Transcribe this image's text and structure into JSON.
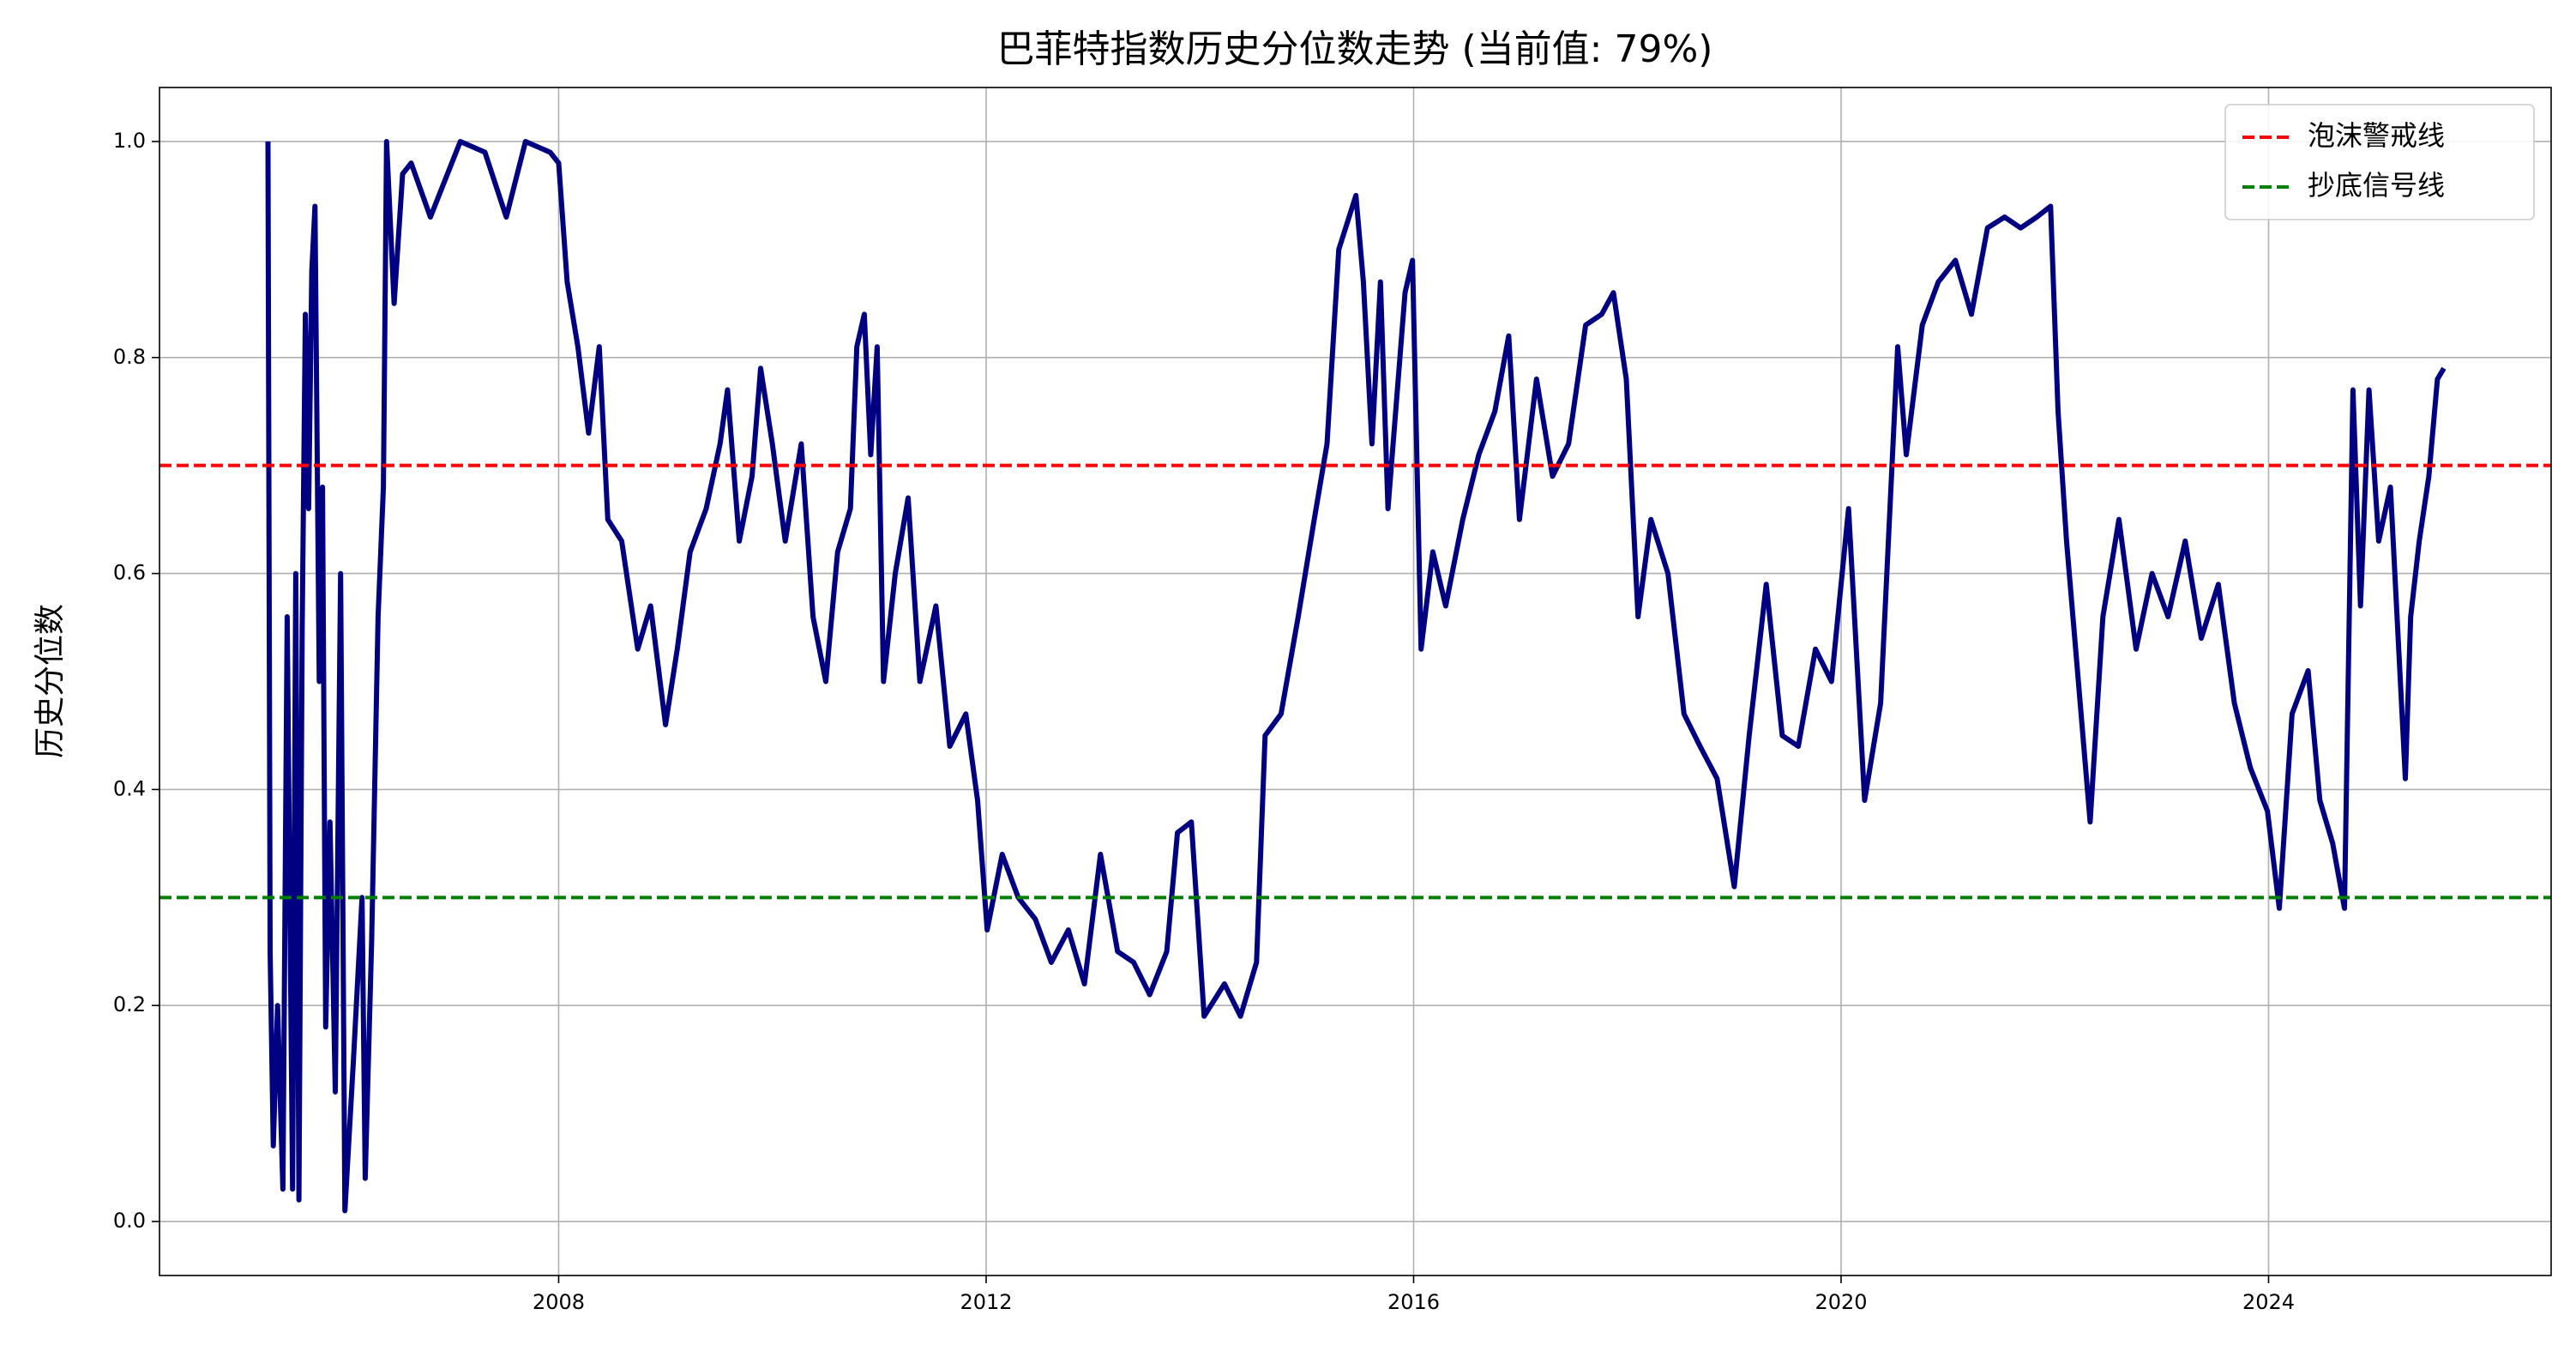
{
  "chart_data": {
    "type": "line",
    "title": "巴菲特指数历史分位数走势 (当前值: 79%)",
    "ylabel": "历史分位数",
    "x": [
      2005.28,
      2005.3,
      2005.33,
      2005.37,
      2005.42,
      2005.46,
      2005.51,
      2005.54,
      2005.57,
      2005.6,
      2005.63,
      2005.66,
      2005.69,
      2005.72,
      2005.76,
      2005.79,
      2005.82,
      2005.86,
      2005.91,
      2005.96,
      2006.0,
      2006.08,
      2006.16,
      2006.19,
      2006.25,
      2006.31,
      2006.36,
      2006.39,
      2006.46,
      2006.54,
      2006.62,
      2006.8,
      2007.08,
      2007.31,
      2007.51,
      2007.69,
      2007.92,
      2008.0,
      2008.08,
      2008.18,
      2008.28,
      2008.38,
      2008.46,
      2008.59,
      2008.74,
      2008.86,
      2009.0,
      2009.11,
      2009.23,
      2009.38,
      2009.51,
      2009.58,
      2009.69,
      2009.81,
      2009.89,
      2010.0,
      2010.12,
      2010.27,
      2010.38,
      2010.5,
      2010.61,
      2010.73,
      2010.79,
      2010.86,
      2010.92,
      2010.98,
      2011.04,
      2011.15,
      2011.27,
      2011.38,
      2011.53,
      2011.66,
      2011.81,
      2011.92,
      2012.01,
      2012.15,
      2012.3,
      2012.46,
      2012.61,
      2012.77,
      2012.92,
      2013.07,
      2013.23,
      2013.38,
      2013.53,
      2013.69,
      2013.79,
      2013.92,
      2014.04,
      2014.23,
      2014.38,
      2014.53,
      2014.61,
      2014.76,
      2014.92,
      2015.07,
      2015.19,
      2015.3,
      2015.46,
      2015.53,
      2015.61,
      2015.69,
      2015.76,
      2015.92,
      2015.99,
      2016.07,
      2016.18,
      2016.3,
      2016.46,
      2016.61,
      2016.76,
      2016.89,
      2016.99,
      2017.15,
      2017.3,
      2017.45,
      2017.61,
      2017.76,
      2017.87,
      2017.99,
      2018.1,
      2018.22,
      2018.38,
      2018.53,
      2018.68,
      2018.84,
      2019.0,
      2019.14,
      2019.3,
      2019.45,
      2019.6,
      2019.76,
      2019.91,
      2020.07,
      2020.22,
      2020.37,
      2020.53,
      2020.61,
      2020.76,
      2020.91,
      2021.07,
      2021.22,
      2021.37,
      2021.53,
      2021.68,
      2021.83,
      2021.96,
      2022.03,
      2022.11,
      2022.22,
      2022.33,
      2022.45,
      2022.6,
      2022.76,
      2022.91,
      2023.06,
      2023.22,
      2023.37,
      2023.53,
      2023.68,
      2023.83,
      2023.99,
      2024.1,
      2024.22,
      2024.37,
      2024.48,
      2024.6,
      2024.71,
      2024.79,
      2024.86,
      2024.94,
      2025.03,
      2025.14,
      2025.28,
      2025.33,
      2025.41,
      2025.5,
      2025.58,
      2025.64
    ],
    "series": [
      {
        "color": "#000080",
        "values": [
          1.0,
          0.25,
          0.07,
          0.2,
          0.03,
          0.56,
          0.03,
          0.6,
          0.02,
          0.55,
          0.84,
          0.66,
          0.88,
          0.94,
          0.5,
          0.68,
          0.18,
          0.37,
          0.12,
          0.6,
          0.01,
          0.15,
          0.3,
          0.04,
          0.26,
          0.56,
          0.68,
          1.0,
          0.85,
          0.97,
          0.98,
          0.93,
          1.0,
          0.99,
          0.93,
          1.0,
          0.99,
          0.98,
          0.87,
          0.81,
          0.73,
          0.81,
          0.65,
          0.63,
          0.53,
          0.57,
          0.46,
          0.53,
          0.62,
          0.66,
          0.72,
          0.77,
          0.63,
          0.69,
          0.79,
          0.72,
          0.63,
          0.72,
          0.56,
          0.5,
          0.62,
          0.66,
          0.81,
          0.84,
          0.71,
          0.81,
          0.5,
          0.6,
          0.67,
          0.5,
          0.57,
          0.44,
          0.47,
          0.39,
          0.27,
          0.34,
          0.3,
          0.28,
          0.24,
          0.27,
          0.22,
          0.34,
          0.25,
          0.24,
          0.21,
          0.25,
          0.36,
          0.37,
          0.19,
          0.22,
          0.19,
          0.24,
          0.45,
          0.47,
          0.56,
          0.65,
          0.72,
          0.9,
          0.95,
          0.87,
          0.72,
          0.87,
          0.66,
          0.86,
          0.89,
          0.53,
          0.62,
          0.57,
          0.65,
          0.71,
          0.75,
          0.82,
          0.65,
          0.78,
          0.69,
          0.72,
          0.83,
          0.84,
          0.86,
          0.78,
          0.56,
          0.65,
          0.6,
          0.47,
          0.44,
          0.41,
          0.31,
          0.45,
          0.59,
          0.45,
          0.44,
          0.53,
          0.5,
          0.66,
          0.39,
          0.48,
          0.81,
          0.71,
          0.83,
          0.87,
          0.89,
          0.84,
          0.92,
          0.93,
          0.92,
          0.93,
          0.94,
          0.75,
          0.63,
          0.5,
          0.37,
          0.56,
          0.65,
          0.53,
          0.6,
          0.56,
          0.63,
          0.54,
          0.59,
          0.48,
          0.42,
          0.38,
          0.29,
          0.47,
          0.51,
          0.39,
          0.35,
          0.29,
          0.77,
          0.57,
          0.77,
          0.63,
          0.68,
          0.41,
          0.56,
          0.63,
          0.69,
          0.78,
          0.79
        ]
      }
    ],
    "hlines": [
      {
        "name": "泡沫警戒线",
        "color": "#ff0000",
        "value": 0.7
      },
      {
        "name": "抄底信号线",
        "color": "#008000",
        "value": 0.3
      }
    ],
    "xlim": [
      2004.265,
      2026.644
    ],
    "xticks": [
      2008,
      2012,
      2016,
      2020,
      2024
    ],
    "ylim": [
      -0.05,
      1.05
    ],
    "yticks": [
      {
        "value": 0,
        "label": "0.0"
      },
      0.2,
      0.4,
      0.6,
      0.8,
      {
        "value": 1,
        "label": "1.0"
      }
    ],
    "grid": true,
    "legend": "upper right"
  }
}
